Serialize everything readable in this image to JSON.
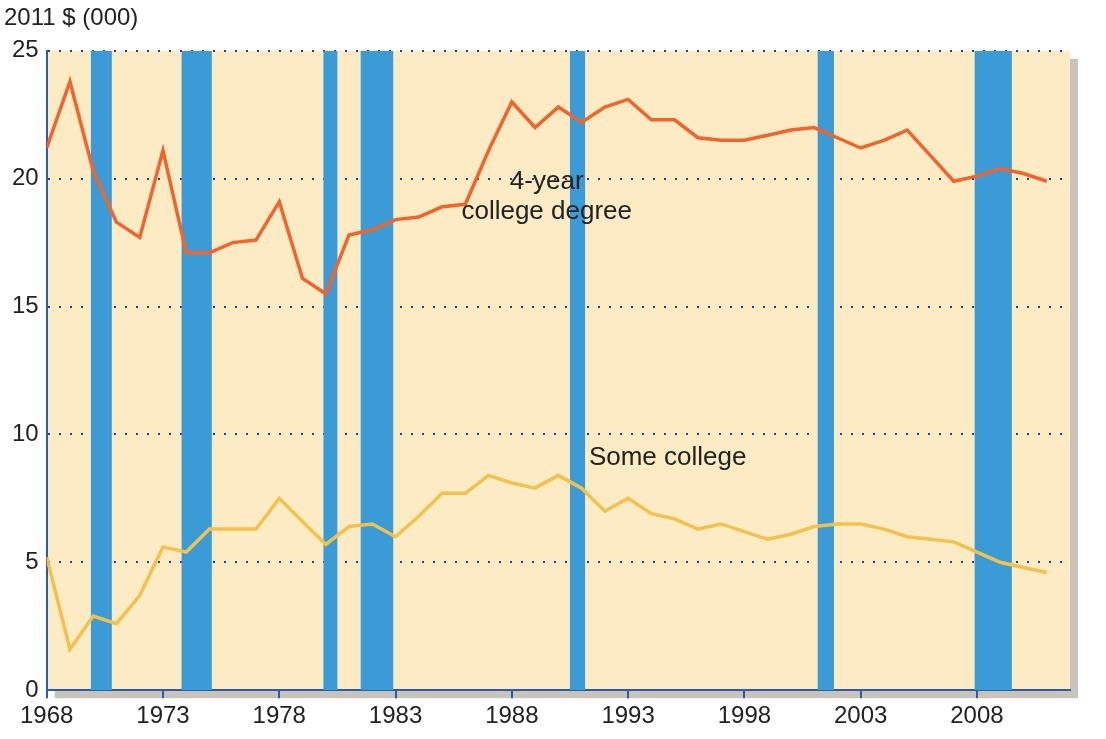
{
  "chart_data": {
    "type": "line",
    "ylabel": "2011 $ (000)",
    "x": [
      1968,
      1969,
      1970,
      1971,
      1972,
      1973,
      1974,
      1975,
      1976,
      1977,
      1978,
      1979,
      1980,
      1981,
      1982,
      1983,
      1984,
      1985,
      1986,
      1987,
      1988,
      1989,
      1990,
      1991,
      1992,
      1993,
      1994,
      1995,
      1996,
      1997,
      1998,
      1999,
      2000,
      2001,
      2002,
      2003,
      2004,
      2005,
      2006,
      2007,
      2008,
      2009,
      2010,
      2011
    ],
    "series": [
      {
        "name": "4-year college degree",
        "color": "#f0642d",
        "values": [
          21.2,
          23.8,
          20.3,
          18.3,
          17.7,
          21.1,
          17.1,
          17.1,
          17.5,
          17.6,
          19.1,
          16.1,
          15.5,
          17.8,
          18.0,
          18.4,
          18.5,
          18.9,
          19.0,
          21.1,
          23.0,
          22.0,
          22.8,
          22.2,
          22.8,
          23.1,
          22.3,
          22.3,
          21.6,
          21.5,
          21.5,
          21.7,
          21.9,
          22.0,
          21.6,
          21.2,
          21.5,
          21.9,
          20.9,
          19.9,
          20.1,
          20.4,
          20.2,
          19.9
        ]
      },
      {
        "name": "Some college",
        "color": "#f2c14e",
        "values": [
          5.2,
          1.6,
          2.9,
          2.6,
          3.7,
          5.6,
          5.4,
          6.3,
          6.3,
          6.3,
          7.5,
          6.6,
          5.7,
          6.4,
          6.5,
          6.0,
          6.8,
          7.7,
          7.7,
          8.4,
          8.1,
          7.9,
          8.4,
          7.9,
          7.0,
          7.5,
          6.9,
          6.7,
          6.3,
          6.5,
          6.2,
          5.9,
          6.1,
          6.4,
          6.5,
          6.5,
          6.3,
          6.0,
          5.9,
          5.8,
          5.4,
          5.0,
          4.8,
          4.6
        ]
      }
    ],
    "xlim": [
      1968,
      2012
    ],
    "xticks": [
      1968,
      1973,
      1978,
      1983,
      1988,
      1993,
      1998,
      2003,
      2008
    ],
    "ylim": [
      0,
      25
    ],
    "yticks": [
      0,
      5,
      10,
      15,
      20,
      25
    ],
    "grid": true,
    "annotations": [
      {
        "text": "4-year\ncollege degree",
        "x": 1989.5,
        "y": 19.3,
        "color": "#222222"
      },
      {
        "text": "Some college",
        "x": 1994.7,
        "y": 9.1,
        "color": "#222222"
      }
    ],
    "shaded_ranges": {
      "color": "#3b9bd6",
      "ranges": [
        {
          "start": 1969.9,
          "end": 1970.8
        },
        {
          "start": 1973.8,
          "end": 1975.1
        },
        {
          "start": 1979.9,
          "end": 1980.5
        },
        {
          "start": 1981.5,
          "end": 1982.9
        },
        {
          "start": 1990.5,
          "end": 1991.15
        },
        {
          "start": 2001.15,
          "end": 2001.85
        },
        {
          "start": 2007.9,
          "end": 2009.5
        }
      ]
    }
  }
}
